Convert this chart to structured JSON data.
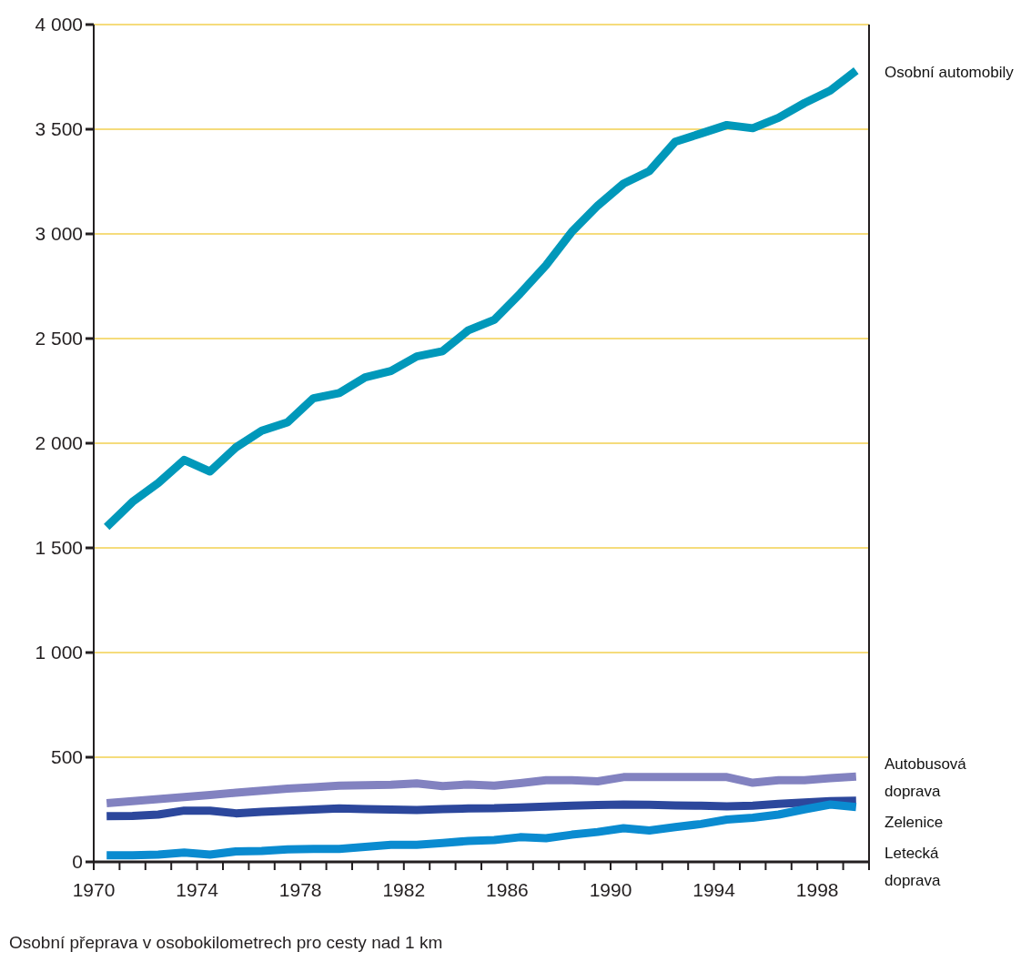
{
  "chart_data": {
    "type": "line",
    "x": [
      1970.5,
      1971.5,
      1972.5,
      1973.5,
      1974.5,
      1975.5,
      1976.5,
      1977.5,
      1978.5,
      1979.5,
      1980.5,
      1981.5,
      1982.5,
      1983.5,
      1984.5,
      1985.5,
      1986.5,
      1987.5,
      1988.5,
      1989.5,
      1990.5,
      1991.5,
      1992.5,
      1993.5,
      1994.5,
      1995.5,
      1996.5,
      1997.5,
      1998.5,
      1999.5
    ],
    "series": [
      {
        "name": "Osobní automobily",
        "color": "#0098ba",
        "values": [
          1600,
          1720,
          1810,
          1920,
          1865,
          1980,
          2060,
          2100,
          2215,
          2240,
          2315,
          2345,
          2415,
          2440,
          2540,
          2590,
          2715,
          2850,
          3010,
          3135,
          3240,
          3300,
          3440,
          3480,
          3520,
          3505,
          3555,
          3625,
          3685,
          3780
        ]
      },
      {
        "name": "Autobusová doprava",
        "color": "#8282c0",
        "values": [
          280,
          290,
          300,
          310,
          320,
          330,
          340,
          350,
          357,
          364,
          366,
          368,
          375,
          362,
          370,
          364,
          376,
          390,
          390,
          385,
          405,
          405,
          405,
          405,
          405,
          378,
          390,
          390,
          400,
          408
        ]
      },
      {
        "name": "Zelenice",
        "color": "#2c479c",
        "values": [
          218,
          220,
          226,
          245,
          245,
          232,
          239,
          245,
          250,
          255,
          252,
          250,
          248,
          252,
          255,
          256,
          260,
          264,
          269,
          272,
          274,
          273,
          270,
          268,
          265,
          268,
          277,
          284,
          290,
          292
        ]
      },
      {
        "name": "Letecká doprava",
        "color": "#0a8bd0",
        "values": [
          32,
          32,
          35,
          45,
          35,
          50,
          52,
          60,
          62,
          62,
          72,
          82,
          82,
          90,
          100,
          104,
          118,
          113,
          130,
          143,
          161,
          150,
          166,
          181,
          202,
          211,
          226,
          251,
          274,
          262
        ]
      }
    ],
    "xlim": [
      1970,
      2000
    ],
    "xticks": [
      1970,
      {
        "value": 1971,
        "label": null
      },
      {
        "value": 1972,
        "label": null
      },
      {
        "value": 1973,
        "label": null
      },
      1974,
      {
        "value": 1975,
        "label": null
      },
      {
        "value": 1976,
        "label": null
      },
      {
        "value": 1977,
        "label": null
      },
      1978,
      {
        "value": 1979,
        "label": null
      },
      {
        "value": 1980,
        "label": null
      },
      {
        "value": 1981,
        "label": null
      },
      1982,
      {
        "value": 1983,
        "label": null
      },
      {
        "value": 1984,
        "label": null
      },
      {
        "value": 1985,
        "label": null
      },
      1986,
      {
        "value": 1987,
        "label": null
      },
      {
        "value": 1988,
        "label": null
      },
      {
        "value": 1989,
        "label": null
      },
      1990,
      {
        "value": 1991,
        "label": null
      },
      {
        "value": 1992,
        "label": null
      },
      {
        "value": 1993,
        "label": null
      },
      1994,
      {
        "value": 1995,
        "label": null
      },
      {
        "value": 1996,
        "label": null
      },
      {
        "value": 1997,
        "label": null
      },
      1998,
      {
        "value": 1999,
        "label": null
      },
      {
        "value": 2000,
        "label": null
      }
    ],
    "ylim": [
      0,
      4000
    ],
    "yticks": [
      0,
      500,
      {
        "value": 1000,
        "label": "1 000"
      },
      {
        "value": 1500,
        "label": "1 500"
      },
      {
        "value": 2000,
        "label": "2 000"
      },
      {
        "value": 2500,
        "label": "2 500"
      },
      {
        "value": 3000,
        "label": "3 000"
      },
      {
        "value": 3500,
        "label": "3 500"
      },
      {
        "value": 4000,
        "label": "4 000"
      }
    ],
    "grid": "y",
    "legend": false,
    "marker": "none",
    "line_style": "solid",
    "annotations": [
      "Osobní přeprava v osobokilometrech pro cesty nad 1 km"
    ]
  }
}
